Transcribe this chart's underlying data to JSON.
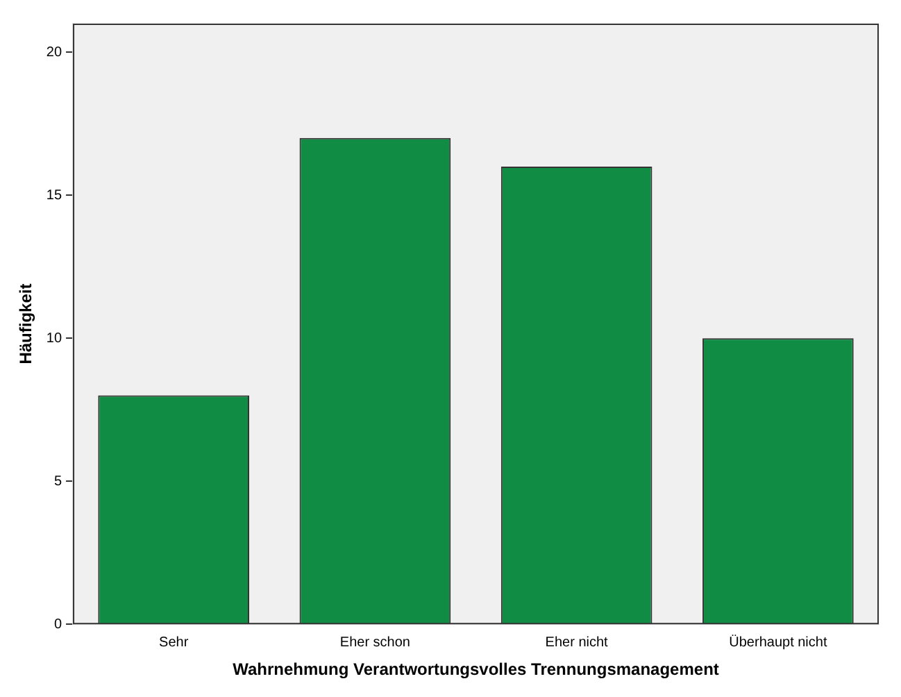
{
  "chart_data": {
    "type": "bar",
    "xlabel": "Wahrnehmung Verantwortungsvolles Trennungsmanagement",
    "ylabel": "Häufigkeit",
    "categories": [
      "Sehr",
      "Eher schon",
      "Eher nicht",
      "Überhaupt nicht"
    ],
    "values": [
      8,
      17,
      16,
      10
    ],
    "color": "#118c44",
    "ylim": [
      0,
      21
    ],
    "yticks": [
      0,
      5,
      10,
      15,
      20
    ],
    "grid": false,
    "legend": false
  }
}
